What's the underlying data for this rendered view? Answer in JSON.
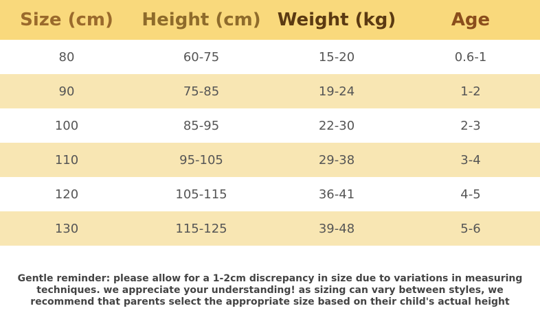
{
  "table": {
    "header": [
      "Size (cm)",
      "Height (cm)",
      "Weight (kg)",
      "Age"
    ],
    "rows": [
      [
        "80",
        "60-75",
        "15-20",
        "0.6-1"
      ],
      [
        "90",
        "75-85",
        "19-24",
        "1-2"
      ],
      [
        "100",
        "85-95",
        "22-30",
        "2-3"
      ],
      [
        "110",
        "95-105",
        "29-38",
        "3-4"
      ],
      [
        "120",
        "105-115",
        "36-41",
        "4-5"
      ],
      [
        "130",
        "115-125",
        "39-48",
        "5-6"
      ]
    ]
  },
  "note": {
    "lines": [
      "Gentle reminder: please allow for a 1-2cm discrepancy in size due to variations in measuring",
      "techniques. we appreciate your understanding! as sizing can vary between styles, we",
      "recommend that parents select the appropriate size based on their child's actual height"
    ]
  }
}
